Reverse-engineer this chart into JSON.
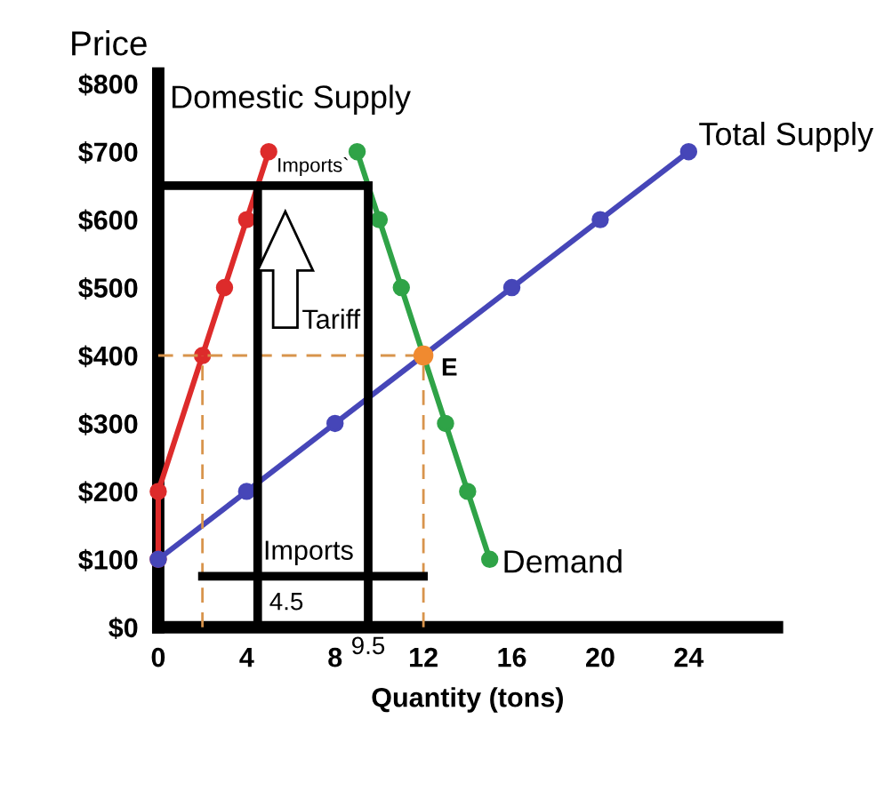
{
  "chart_data": {
    "type": "line",
    "xlabel": "Quantity (tons)",
    "ylabel": "Price",
    "xlim": [
      0,
      28
    ],
    "ylim": [
      0,
      815
    ],
    "xticks": [
      0,
      4,
      8,
      12,
      16,
      20,
      24
    ],
    "yticks": [
      {
        "value": 0,
        "label": "$0"
      },
      {
        "value": 100,
        "label": "$100"
      },
      {
        "value": 200,
        "label": "$200"
      },
      {
        "value": 300,
        "label": "$300"
      },
      {
        "value": 400,
        "label": "$400"
      },
      {
        "value": 500,
        "label": "$500"
      },
      {
        "value": 600,
        "label": "$600"
      },
      {
        "value": 700,
        "label": "$700"
      },
      {
        "value": 800,
        "label": "$800"
      }
    ],
    "grid": false,
    "legend": false,
    "marker": "circle",
    "line_style": "solid",
    "series": [
      {
        "name": "Domestic Supply",
        "color": "#dd2b2b",
        "x": [
          0,
          0,
          2,
          3,
          4,
          5
        ],
        "values": [
          100,
          200,
          400,
          500,
          600,
          700
        ]
      },
      {
        "name": "Demand",
        "color": "#2fa347",
        "x": [
          9,
          10,
          11,
          12,
          13,
          14,
          15
        ],
        "values": [
          700,
          600,
          500,
          400,
          300,
          200,
          100
        ]
      },
      {
        "name": "Total Supply",
        "color": "#4646b8",
        "x": [
          0,
          4,
          8,
          12,
          16,
          20,
          24
        ],
        "values": [
          100,
          200,
          300,
          400,
          500,
          600,
          700
        ]
      },
      {
        "color": "#d8944c",
        "x": [
          0,
          12
        ],
        "values": [
          400,
          400
        ],
        "marker": "none",
        "line_style": "dashed"
      },
      {
        "color": "#d8944c",
        "x": [
          2,
          2
        ],
        "values": [
          0,
          400
        ],
        "marker": "none",
        "line_style": "dashed"
      },
      {
        "color": "#d8944c",
        "x": [
          12,
          12
        ],
        "values": [
          0,
          400
        ],
        "marker": "none",
        "line_style": "dashed"
      },
      {
        "color": "#000000",
        "x": [
          0,
          9.5
        ],
        "values": [
          650,
          650
        ],
        "marker": "none"
      },
      {
        "color": "#000000",
        "x": [
          4.5,
          4.5
        ],
        "values": [
          0,
          650
        ],
        "marker": "none"
      },
      {
        "color": "#000000",
        "x": [
          9.5,
          9.5
        ],
        "values": [
          0,
          650
        ],
        "marker": "none"
      },
      {
        "color": "#000000",
        "x": [
          2,
          12
        ],
        "values": [
          75,
          75
        ],
        "marker": "none"
      },
      {
        "type": "scatter",
        "color": "#f08a30",
        "x": [
          12
        ],
        "values": [
          400
        ]
      }
    ],
    "annotations": [
      "Imports`",
      "Tariff",
      "E",
      "Imports",
      "4.5",
      "9.5"
    ]
  }
}
